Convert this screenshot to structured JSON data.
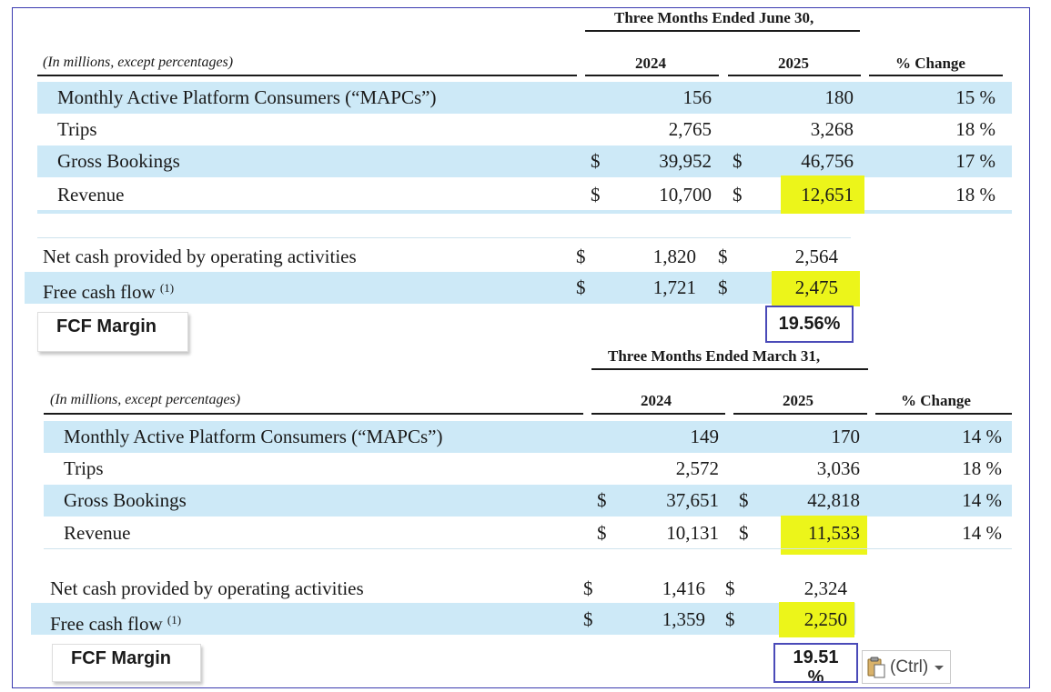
{
  "q2": {
    "period_header": "Three Months Ended June 30,",
    "units_note": "(In millions, except percentages)",
    "col_2024": "2024",
    "col_2025": "2025",
    "col_change": "% Change",
    "rows": [
      {
        "label": "Monthly Active Platform Consumers (“MAPCs”)",
        "dollar": "",
        "v2024": "156",
        "v2025": "180",
        "change": "15 %"
      },
      {
        "label": "Trips",
        "dollar": "",
        "v2024": "2,765",
        "v2025": "3,268",
        "change": "18 %"
      },
      {
        "label": "Gross Bookings",
        "dollar": "$",
        "v2024": "39,952",
        "v2025": "46,756",
        "change": "17 %"
      },
      {
        "label": "Revenue",
        "dollar": "$",
        "v2024": "10,700",
        "v2025": "12,651",
        "change": "18 %"
      }
    ],
    "cash": [
      {
        "label": "Net cash provided by operating activities",
        "dollar": "$",
        "v2024": "1,820",
        "v2025": "2,564"
      },
      {
        "label": "Free cash flow",
        "sup": "(1)",
        "dollar": "$",
        "v2024": "1,721",
        "v2025": "2,475"
      }
    ],
    "fcf_label": "FCF Margin",
    "fcf_value": "19.56%"
  },
  "q1": {
    "period_header": "Three Months Ended March 31,",
    "units_note": "(In millions, except percentages)",
    "col_2024": "2024",
    "col_2025": "2025",
    "col_change": "% Change",
    "rows": [
      {
        "label": "Monthly Active Platform Consumers (“MAPCs”)",
        "dollar": "",
        "v2024": "149",
        "v2025": "170",
        "change": "14 %"
      },
      {
        "label": "Trips",
        "dollar": "",
        "v2024": "2,572",
        "v2025": "3,036",
        "change": "18 %"
      },
      {
        "label": "Gross Bookings",
        "dollar": "$",
        "v2024": "37,651",
        "v2025": "42,818",
        "change": "14 %"
      },
      {
        "label": "Revenue",
        "dollar": "$",
        "v2024": "10,131",
        "v2025": "11,533",
        "change": "14 %"
      }
    ],
    "cash": [
      {
        "label": "Net cash provided by operating activities",
        "dollar": "$",
        "v2024": "1,416",
        "v2025": "2,324"
      },
      {
        "label": "Free cash flow",
        "sup": "(1)",
        "dollar": "$",
        "v2024": "1,359",
        "v2025": "2,250"
      }
    ],
    "fcf_label": "FCF Margin",
    "fcf_value_line1": "19.51",
    "fcf_value_line2": "%"
  },
  "paste_options": {
    "icon": "clipboard-icon",
    "label": "(Ctrl)",
    "dropdown_icon": "caret-down-icon"
  },
  "colors": {
    "band": "#cde9f7",
    "highlight": "#ecf51a",
    "box_border": "#4a4ab8"
  }
}
